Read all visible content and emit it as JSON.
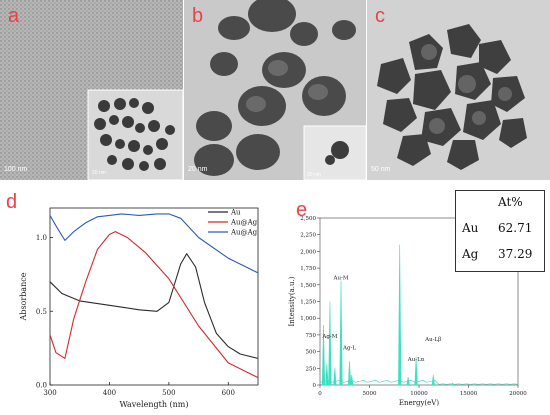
{
  "panels": {
    "a": {
      "letter": "a",
      "scalebar": "100 nm",
      "inset_scalebar": "20 nm"
    },
    "b": {
      "letter": "b",
      "scalebar": "20 nm",
      "inset_scalebar": "20 nm"
    },
    "c": {
      "letter": "c",
      "scalebar": "50 nm"
    }
  },
  "uvvis": {
    "letter": "d",
    "chart_data": {
      "type": "line",
      "xlabel": "Wavelength (nm)",
      "ylabel": "Absorbance",
      "xlim": [
        300,
        650
      ],
      "ylim": [
        0.0,
        1.2
      ],
      "xticks": [
        "300",
        "400",
        "500",
        "600"
      ],
      "yticks": [
        "0.0",
        "0.5",
        "1.0"
      ],
      "legend_position": "top-right",
      "series": [
        {
          "name": "Au",
          "color": "#2b2b2b",
          "x": [
            300,
            320,
            350,
            400,
            450,
            480,
            500,
            520,
            530,
            545,
            560,
            580,
            600,
            620,
            650
          ],
          "y": [
            0.7,
            0.62,
            0.57,
            0.54,
            0.51,
            0.5,
            0.56,
            0.82,
            0.89,
            0.8,
            0.56,
            0.35,
            0.26,
            0.21,
            0.18
          ]
        },
        {
          "name": "Au@Ag",
          "color": "#d42a2a",
          "x": [
            300,
            310,
            325,
            340,
            360,
            380,
            400,
            410,
            430,
            460,
            500,
            550,
            600,
            650
          ],
          "y": [
            0.34,
            0.22,
            0.18,
            0.45,
            0.7,
            0.92,
            1.02,
            1.04,
            1.0,
            0.9,
            0.72,
            0.4,
            0.15,
            0.05
          ]
        },
        {
          "name": "Au@Ag",
          "color": "#2a59c0",
          "x": [
            300,
            310,
            325,
            340,
            360,
            380,
            400,
            420,
            450,
            480,
            500,
            520,
            550,
            600,
            650
          ],
          "y": [
            1.15,
            1.08,
            0.98,
            1.04,
            1.1,
            1.14,
            1.15,
            1.16,
            1.15,
            1.16,
            1.16,
            1.13,
            1.0,
            0.86,
            0.76
          ]
        }
      ]
    }
  },
  "eds": {
    "letter": "e",
    "chart_data": {
      "type": "line",
      "xlabel": "Energy(eV)",
      "ylabel": "Intensity(a.u.)",
      "xlim": [
        0,
        20000
      ],
      "ylim": [
        0,
        2500
      ],
      "xticks": [
        "0",
        "5000",
        "10000",
        "15000",
        "20000"
      ],
      "yticks": [
        "0",
        "250",
        "500",
        "750",
        "1,000",
        "1,250",
        "1,500",
        "1,750",
        "2,000",
        "2,250",
        "2,500"
      ],
      "color": "#3ee0c2",
      "peaks": [
        {
          "x": 350,
          "y": 900
        },
        {
          "x": 700,
          "y": 320
        },
        {
          "x": 1000,
          "y": 1250
        },
        {
          "x": 1500,
          "y": 260
        },
        {
          "x": 2120,
          "y": 1560
        },
        {
          "x": 2980,
          "y": 360
        },
        {
          "x": 3200,
          "y": 150
        },
        {
          "x": 8050,
          "y": 2100
        },
        {
          "x": 8900,
          "y": 120
        },
        {
          "x": 9710,
          "y": 420
        },
        {
          "x": 11440,
          "y": 150
        },
        {
          "x": 13400,
          "y": 30
        }
      ],
      "annotations": [
        {
          "text": "Au-M",
          "x": 2120,
          "y": 1580
        },
        {
          "text": "Ag-M",
          "x": 1000,
          "y": 700
        },
        {
          "text": "Ag-L",
          "x": 2980,
          "y": 530
        },
        {
          "text": "Au-Lα",
          "x": 9710,
          "y": 360
        },
        {
          "text": "Au-Lβ",
          "x": 11440,
          "y": 660
        }
      ]
    }
  },
  "composition": {
    "header": "At%",
    "rows": [
      {
        "element": "Au",
        "value": "62.71"
      },
      {
        "element": "Ag",
        "value": "37.29"
      }
    ]
  }
}
